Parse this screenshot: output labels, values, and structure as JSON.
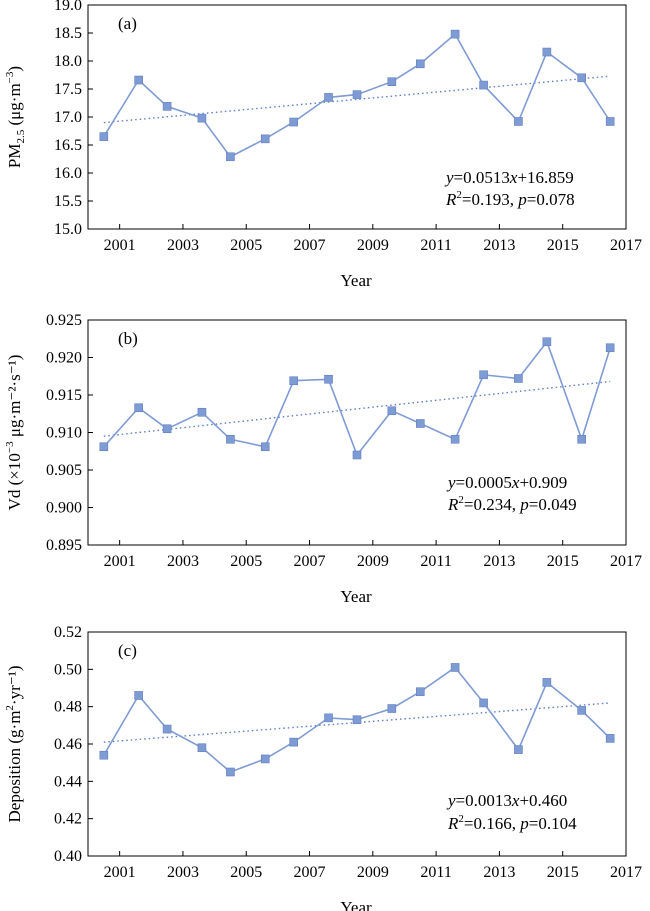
{
  "colors": {
    "series": "#7f9bd4",
    "trend": "#5b7ec8",
    "axis": "#000000"
  },
  "chart_data": [
    {
      "type": "line",
      "panel_label": "(a)",
      "xlabel": "Year",
      "ylabel_main": "PM",
      "ylabel_sub": "2.5",
      "ylabel_rest": " (μg·m",
      "ylabel_sup": "−3",
      "ylabel_end": ")",
      "x": [
        2000.5,
        2001.6,
        2002.5,
        2003.6,
        2004.5,
        2005.6,
        2006.5,
        2007.6,
        2008.5,
        2009.6,
        2010.5,
        2011.6,
        2012.5,
        2013.6,
        2014.5,
        2015.6,
        2016.5
      ],
      "values": [
        16.65,
        17.66,
        17.19,
        16.98,
        16.29,
        16.61,
        16.91,
        17.35,
        17.4,
        17.63,
        17.95,
        18.48,
        17.57,
        16.92,
        18.16,
        17.7,
        16.92
      ],
      "xlim": [
        2000,
        2017
      ],
      "x_ticks": [
        "2001",
        "2003",
        "2005",
        "2007",
        "2009",
        "2011",
        "2013",
        "2015",
        "2017"
      ],
      "ylim": [
        15.0,
        19.0
      ],
      "y_ticks": [
        "15.0",
        "15.5",
        "16.0",
        "16.5",
        "17.0",
        "17.5",
        "18.0",
        "18.5",
        "19.0"
      ],
      "trend": {
        "y_start": 16.9,
        "y_end": 17.73
      },
      "equation": {
        "y": "y",
        "eq_rest": "=0.0513",
        "x": "x",
        "eq_end": "+16.859",
        "r": "R",
        "r_sup": "2",
        "r_rest": "=0.193, ",
        "p": "p",
        "p_rest": "=0.078"
      },
      "grid": false
    },
    {
      "type": "line",
      "panel_label": "(b)",
      "xlabel": "Year",
      "ylabel_main": "Vd (×10",
      "ylabel_sub": "",
      "ylabel_rest": "",
      "ylabel_sup": "−3",
      "ylabel_end": " μg·m⁻²·s⁻¹)",
      "x": [
        2000.5,
        2001.6,
        2002.5,
        2003.6,
        2004.5,
        2005.6,
        2006.5,
        2007.6,
        2008.5,
        2009.6,
        2010.5,
        2011.6,
        2012.5,
        2013.6,
        2014.5,
        2015.6,
        2016.5
      ],
      "values": [
        0.9081,
        0.9133,
        0.9105,
        0.9127,
        0.9091,
        0.9081,
        0.9169,
        0.9171,
        0.907,
        0.9129,
        0.9112,
        0.9091,
        0.9177,
        0.9172,
        0.9221,
        0.9091,
        0.9213
      ],
      "xlim": [
        2000,
        2017
      ],
      "x_ticks": [
        "2001",
        "2003",
        "2005",
        "2007",
        "2009",
        "2011",
        "2013",
        "2015",
        "2017"
      ],
      "ylim": [
        0.895,
        0.925
      ],
      "y_ticks": [
        "0.895",
        "0.900",
        "0.905",
        "0.910",
        "0.915",
        "0.920",
        "0.925"
      ],
      "trend": {
        "y_start": 0.9095,
        "y_end": 0.9168
      },
      "equation": {
        "y": "y",
        "eq_rest": "=0.0005",
        "x": "x",
        "eq_end": "+0.909",
        "r": "R",
        "r_sup": "2",
        "r_rest": "=0.234, ",
        "p": "p",
        "p_rest": "=0.049"
      },
      "grid": false
    },
    {
      "type": "line",
      "panel_label": "(c)",
      "xlabel": "Year",
      "ylabel_main": "Deposition (g·m",
      "ylabel_sub": "",
      "ylabel_rest": "",
      "ylabel_sup": "2",
      "ylabel_end": "·yr⁻¹)",
      "x": [
        2000.5,
        2001.6,
        2002.5,
        2003.6,
        2004.5,
        2005.6,
        2006.5,
        2007.6,
        2008.5,
        2009.6,
        2010.5,
        2011.6,
        2012.5,
        2013.6,
        2014.5,
        2015.6,
        2016.5
      ],
      "values": [
        0.454,
        0.486,
        0.468,
        0.458,
        0.445,
        0.452,
        0.461,
        0.474,
        0.473,
        0.479,
        0.488,
        0.501,
        0.482,
        0.457,
        0.493,
        0.478,
        0.463
      ],
      "xlim": [
        2000,
        2017
      ],
      "x_ticks": [
        "2001",
        "2003",
        "2005",
        "2007",
        "2009",
        "2011",
        "2013",
        "2015",
        "2017"
      ],
      "ylim": [
        0.4,
        0.52
      ],
      "y_ticks": [
        "0.40",
        "0.42",
        "0.44",
        "0.46",
        "0.48",
        "0.50",
        "0.52"
      ],
      "trend": {
        "y_start": 0.461,
        "y_end": 0.482
      },
      "equation": {
        "y": "y",
        "eq_rest": "=0.0013",
        "x": "x",
        "eq_end": "+0.460",
        "r": "R",
        "r_sup": "2",
        "r_rest": "=0.166, ",
        "p": "p",
        "p_rest": "=0.104"
      },
      "grid": false
    }
  ]
}
